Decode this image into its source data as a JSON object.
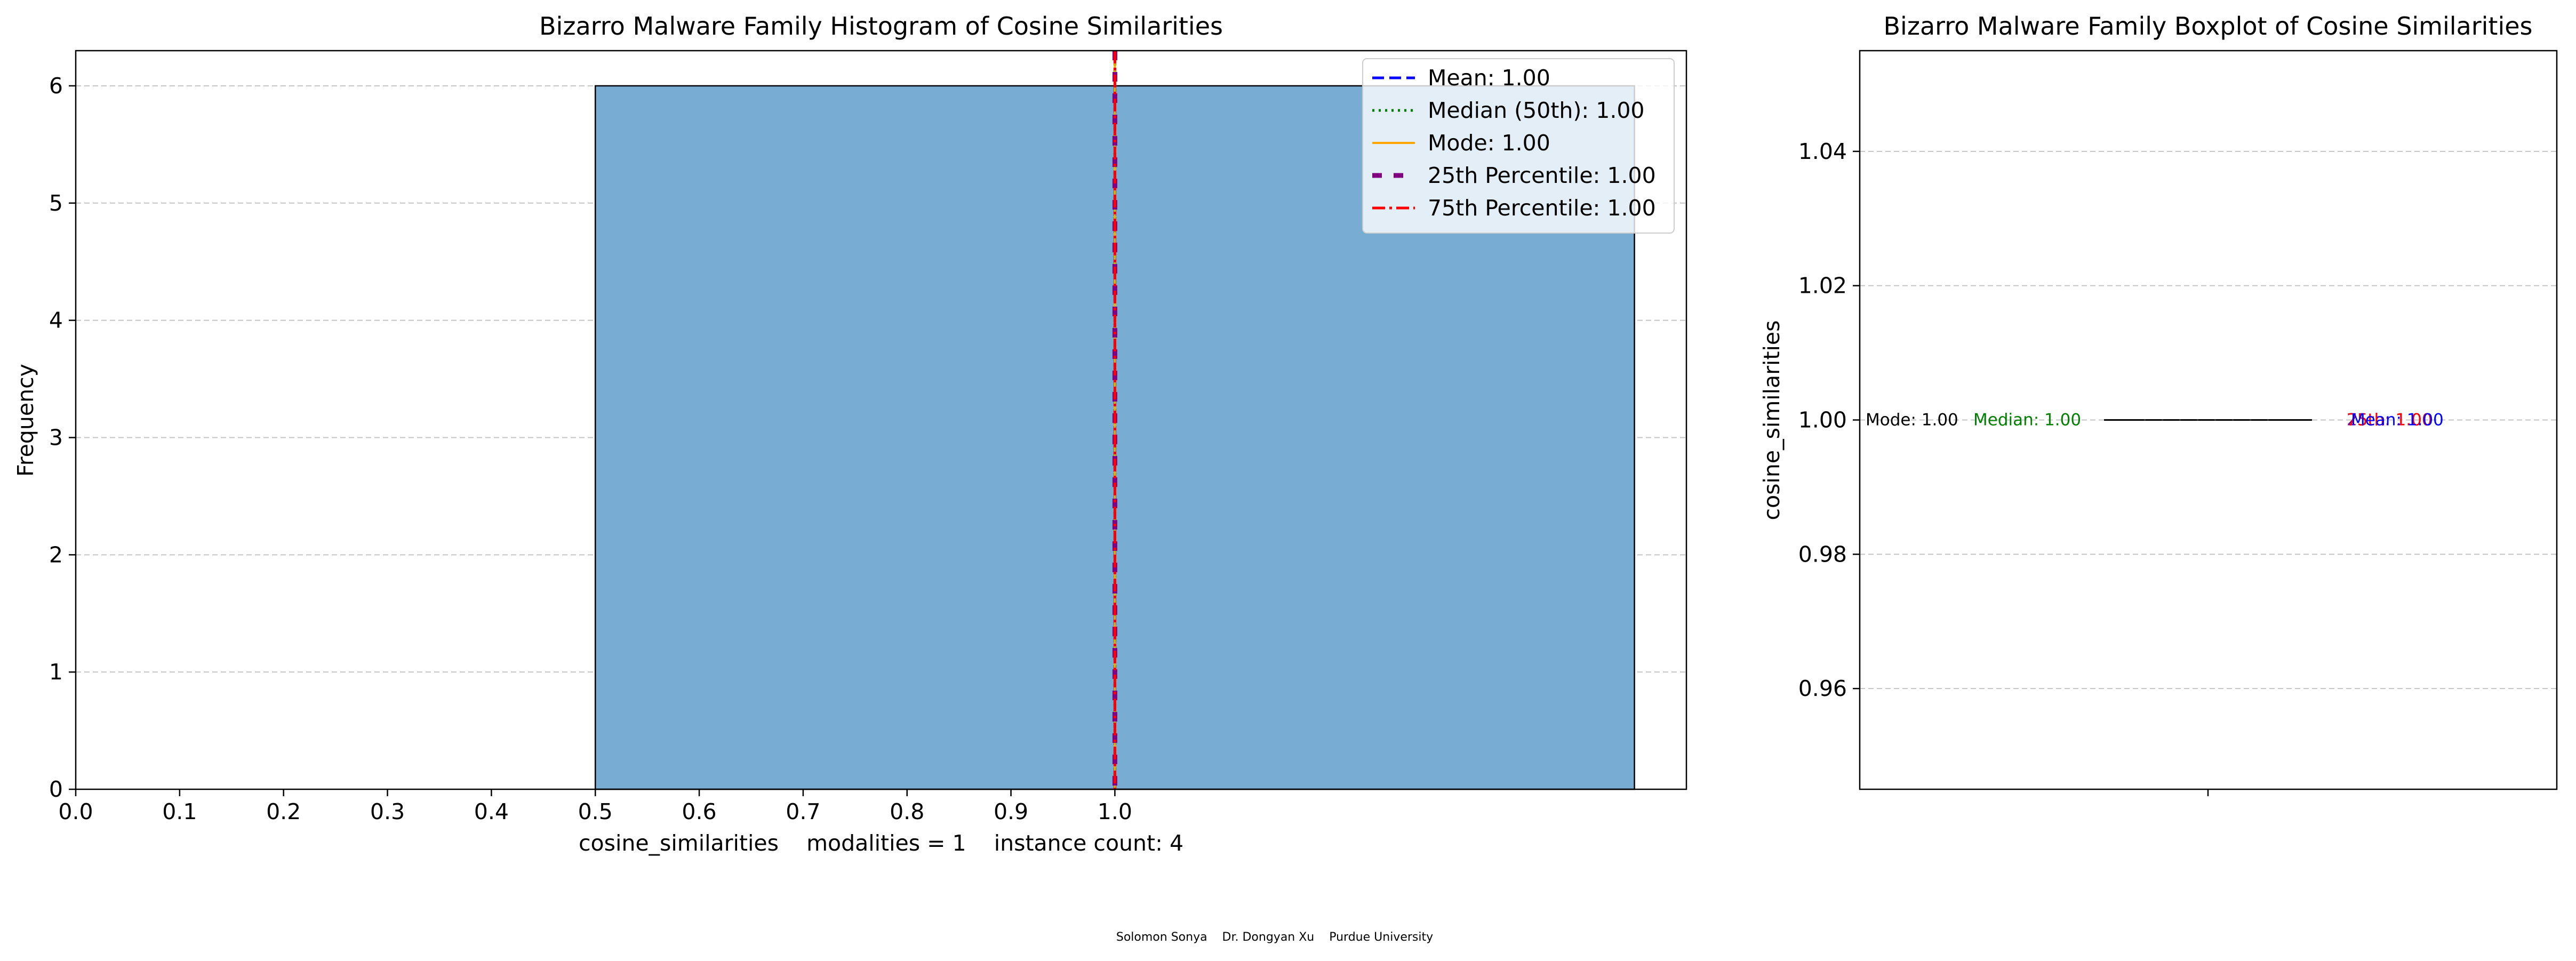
{
  "footer": "Solomon Sonya    Dr. Dongyan Xu    Purdue University",
  "chart_data": [
    {
      "type": "bar",
      "title": "Bizarro Malware Family Histogram of Cosine Similarities",
      "xlabel": "cosine_similarities    modalities = 1    instance count: 4",
      "ylabel": "Frequency",
      "xlim": [
        0.0,
        1.55
      ],
      "ylim": [
        0,
        6.3
      ],
      "xticks": [
        "0.0",
        "0.1",
        "0.2",
        "0.3",
        "0.4",
        "0.5",
        "0.6",
        "0.7",
        "0.8",
        "0.9",
        "1.0"
      ],
      "yticks": [
        "0",
        "1",
        "2",
        "3",
        "4",
        "5",
        "6"
      ],
      "grid": "y",
      "bins": [
        {
          "x0": 0.5,
          "x1": 1.5,
          "value": 6
        }
      ],
      "bar_color": "#79acd2",
      "lines": [
        {
          "name": "Mean: 1.00",
          "x": 1.0,
          "color": "#0000ff",
          "style": "dashed"
        },
        {
          "name": "Median (50th): 1.00",
          "x": 1.0,
          "color": "#008000",
          "style": "dotted"
        },
        {
          "name": "Mode: 1.00",
          "x": 1.0,
          "color": "#ffa500",
          "style": "solid"
        },
        {
          "name": "25th Percentile: 1.00",
          "x": 1.0,
          "color": "#800080",
          "style": "dashdot-thick"
        },
        {
          "name": "75th Percentile: 1.00",
          "x": 1.0,
          "color": "#ff0000",
          "style": "dashdot"
        }
      ],
      "legend": "top-right"
    },
    {
      "type": "box",
      "title": "Bizarro Malware Family Boxplot of Cosine Similarities",
      "ylabel": "cosine_similarities",
      "ylim": [
        0.945,
        1.055
      ],
      "yticks": [
        "0.96",
        "0.98",
        "1.00",
        "1.02",
        "1.04"
      ],
      "grid": "y",
      "box": {
        "min": 1.0,
        "q1": 1.0,
        "median": 1.0,
        "q3": 1.0,
        "max": 1.0
      },
      "annotations": [
        {
          "text": "Mode: 1.00",
          "color": "#000000"
        },
        {
          "text": "Median: 1.00",
          "color": "#008000"
        },
        {
          "text": "25th: 1.00",
          "color": "#800080"
        },
        {
          "text": "75th: 1.00",
          "color": "#ff0000"
        },
        {
          "text": "Mean: 1.00",
          "color": "#0000ff"
        }
      ]
    }
  ]
}
